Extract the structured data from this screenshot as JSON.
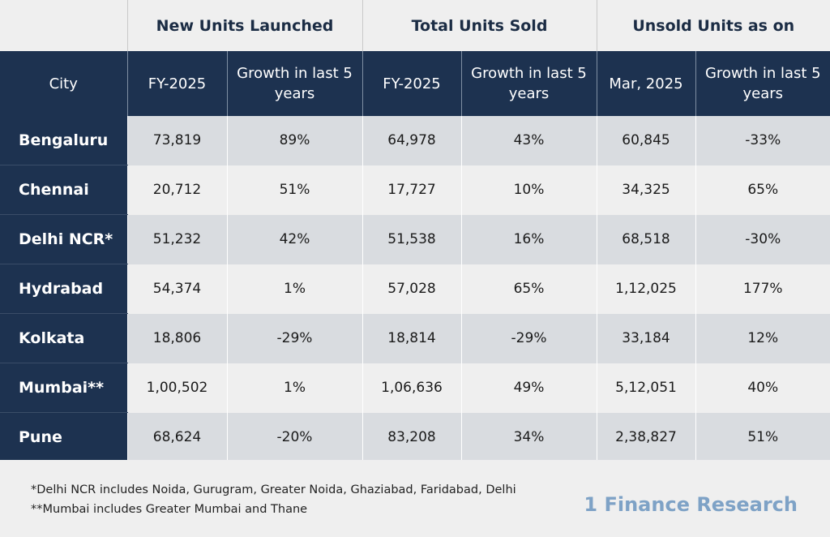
{
  "groups": [
    "New Units Launched",
    "Total Units Sold",
    "Unsold Units as on"
  ],
  "subheaders": {
    "city": "City",
    "launched_fy": "FY-2025",
    "launched_growth": "Growth in last 5 years",
    "sold_fy": "FY-2025",
    "sold_growth": "Growth in last 5 years",
    "unsold_date": "Mar, 2025",
    "unsold_growth": "Growth in last 5 years"
  },
  "rows": [
    {
      "city": "Bengaluru",
      "launched": "73,819",
      "launched_growth": "89%",
      "sold": "64,978",
      "sold_growth": "43%",
      "unsold": "60,845",
      "unsold_growth": "-33%"
    },
    {
      "city": "Chennai",
      "launched": "20,712",
      "launched_growth": "51%",
      "sold": "17,727",
      "sold_growth": "10%",
      "unsold": "34,325",
      "unsold_growth": "65%"
    },
    {
      "city": "Delhi NCR*",
      "launched": "51,232",
      "launched_growth": "42%",
      "sold": "51,538",
      "sold_growth": "16%",
      "unsold": "68,518",
      "unsold_growth": "-30%"
    },
    {
      "city": "Hydrabad",
      "launched": "54,374",
      "launched_growth": "1%",
      "sold": "57,028",
      "sold_growth": "65%",
      "unsold": "1,12,025",
      "unsold_growth": "177%"
    },
    {
      "city": "Kolkata",
      "launched": "18,806",
      "launched_growth": "-29%",
      "sold": "18,814",
      "sold_growth": "-29%",
      "unsold": "33,184",
      "unsold_growth": "12%"
    },
    {
      "city": "Mumbai**",
      "launched": "1,00,502",
      "launched_growth": "1%",
      "sold": "1,06,636",
      "sold_growth": "49%",
      "unsold": "5,12,051",
      "unsold_growth": "40%"
    },
    {
      "city": "Pune",
      "launched": "68,624",
      "launched_growth": "-20%",
      "sold": "83,208",
      "sold_growth": "34%",
      "unsold": "2,38,827",
      "unsold_growth": "51%"
    }
  ],
  "footnotes": [
    "*Delhi NCR includes Noida, Gurugram, Greater Noida, Ghaziabad, Faridabad, Delhi",
    "**Mumbai includes Greater Mumbai and Thane"
  ],
  "brand": "1 Finance Research",
  "colors": {
    "header_navy": "#1d3250",
    "row_shade": "#d9dce0",
    "background": "#efefef",
    "brand": "#7ea2c6"
  }
}
